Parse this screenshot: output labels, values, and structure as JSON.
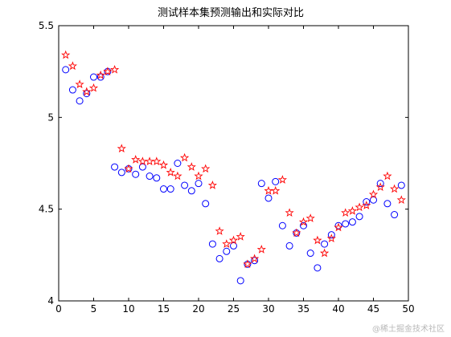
{
  "chart_data": {
    "type": "scatter",
    "title": "测试样本集预测输出和实际对比",
    "xlim": [
      0,
      50
    ],
    "ylim": [
      4,
      5.5
    ],
    "xticks": [
      0,
      5,
      10,
      15,
      20,
      25,
      30,
      35,
      40,
      45,
      50
    ],
    "yticks": [
      4,
      4.5,
      5,
      5.5
    ],
    "ytick_labels": [
      "4",
      "4.5",
      "5",
      "5.5"
    ],
    "grid": false,
    "series": [
      {
        "marker": "circle",
        "color": "#0000ff",
        "x": [
          1,
          2,
          3,
          4,
          5,
          6,
          7,
          8,
          9,
          10,
          11,
          12,
          13,
          14,
          15,
          16,
          17,
          18,
          19,
          20,
          21,
          22,
          23,
          24,
          25,
          26,
          27,
          28,
          29,
          30,
          31,
          32,
          33,
          34,
          35,
          36,
          37,
          38,
          39,
          40,
          41,
          42,
          43,
          44,
          45,
          46,
          47,
          48,
          49
        ],
        "y": [
          5.26,
          5.15,
          5.09,
          5.13,
          5.22,
          5.22,
          5.25,
          4.73,
          4.7,
          4.72,
          4.69,
          4.73,
          4.68,
          4.67,
          4.61,
          4.61,
          4.75,
          4.63,
          4.6,
          4.64,
          4.53,
          4.31,
          4.23,
          4.27,
          4.3,
          4.11,
          4.2,
          4.22,
          4.64,
          4.56,
          4.65,
          4.41,
          4.3,
          4.37,
          4.41,
          4.26,
          4.18,
          4.31,
          4.36,
          4.41,
          4.42,
          4.43,
          4.46,
          4.54,
          4.55,
          4.64,
          4.53,
          4.47,
          4.63
        ]
      },
      {
        "marker": "star",
        "color": "#ff0000",
        "x": [
          1,
          2,
          3,
          4,
          5,
          6,
          7,
          8,
          9,
          10,
          11,
          12,
          13,
          14,
          15,
          16,
          17,
          18,
          19,
          20,
          21,
          22,
          23,
          24,
          25,
          26,
          27,
          28,
          29,
          30,
          31,
          32,
          33,
          34,
          35,
          36,
          37,
          38,
          39,
          40,
          41,
          42,
          43,
          44,
          45,
          46,
          47,
          48,
          49
        ],
        "y": [
          5.34,
          5.28,
          5.18,
          5.14,
          5.16,
          5.23,
          5.25,
          5.26,
          4.83,
          4.72,
          4.77,
          4.76,
          4.76,
          4.76,
          4.74,
          4.7,
          4.68,
          4.78,
          4.73,
          4.68,
          4.72,
          4.63,
          4.38,
          4.31,
          4.33,
          4.35,
          4.2,
          4.23,
          4.28,
          4.6,
          4.6,
          4.66,
          4.48,
          4.37,
          4.43,
          4.45,
          4.33,
          4.26,
          4.34,
          4.4,
          4.48,
          4.49,
          4.51,
          4.52,
          4.58,
          4.62,
          4.68,
          4.61,
          4.55
        ]
      }
    ]
  },
  "watermark": "@稀土掘金技术社区"
}
